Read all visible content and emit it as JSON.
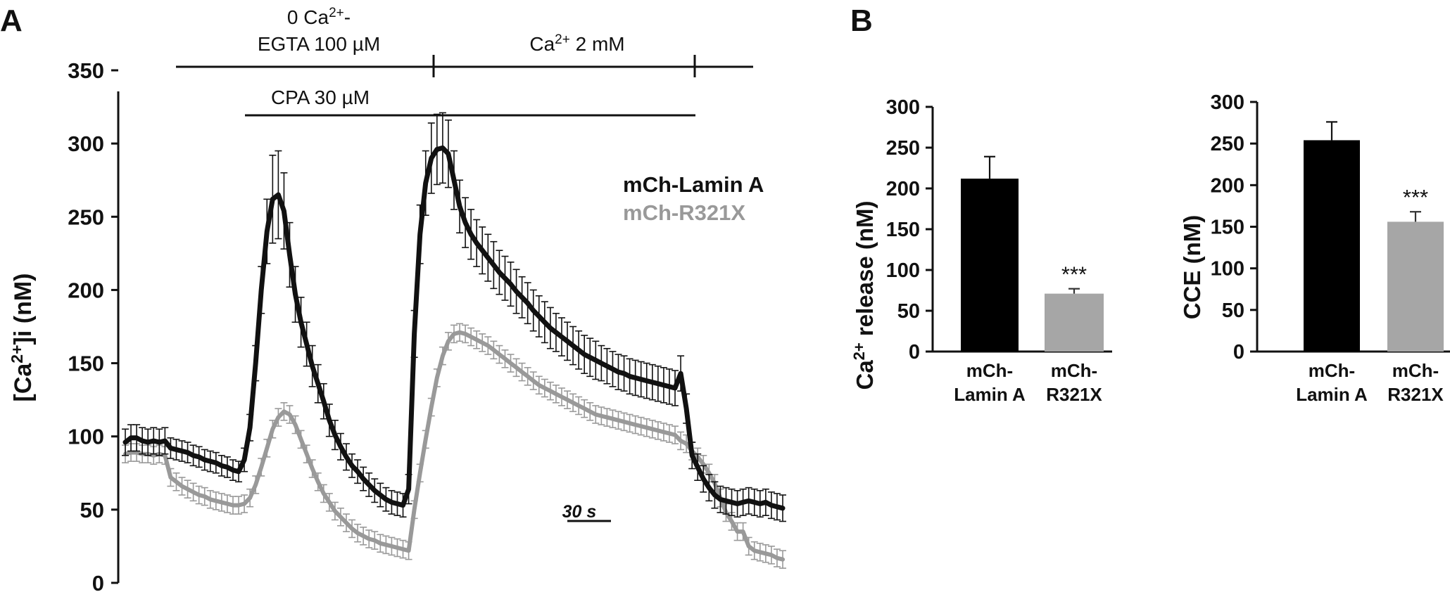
{
  "panel_labels": {
    "a": "A",
    "b": "B"
  },
  "protocol": {
    "phase1_line1": "0 Ca",
    "phase1_sup": "2+",
    "phase1_suffix": "-",
    "phase1_line2": "EGTA 100 µM",
    "phase2_prefix": "Ca",
    "phase2_sup": "2+",
    "phase2_suffix": " 2 mM",
    "drug": "CPA 30 µM"
  },
  "colors": {
    "lamin_a": "#111111",
    "r321x": "#999999",
    "axis": "#111111"
  },
  "chart_data": [
    {
      "type": "line",
      "panel": "A",
      "ylabel_prefix": "[Ca",
      "ylabel_sup": "2+",
      "ylabel_suffix": "]i (nM)",
      "yticks": [
        "0",
        "50",
        "100",
        "150",
        "200",
        "250",
        "300",
        "350"
      ],
      "ylim": [
        0,
        350
      ],
      "scale_bar": "30 s",
      "error_bars": true,
      "series": [
        {
          "name": "mCh-Lamin A",
          "color": "#111111",
          "x": [
            0,
            8,
            16,
            24,
            32,
            40,
            48,
            56,
            64,
            72,
            80,
            88,
            96,
            104,
            112,
            120,
            128,
            136,
            144,
            152,
            160,
            168,
            176,
            184,
            192,
            200,
            208,
            216,
            224,
            232,
            240,
            248,
            256,
            264,
            272,
            280,
            288,
            296,
            304,
            312,
            320,
            328,
            336,
            344,
            352,
            360,
            368,
            376,
            384,
            392,
            400,
            408,
            416,
            424,
            432,
            440,
            448,
            456,
            464,
            472,
            480,
            488,
            496,
            504,
            512,
            520,
            528,
            536,
            544,
            552,
            560,
            568,
            576,
            584,
            592,
            600,
            608,
            616,
            624,
            632,
            640,
            648,
            656,
            664,
            672,
            680,
            688,
            696,
            704,
            712,
            720,
            728,
            736,
            744,
            752,
            760,
            768,
            776,
            784,
            792,
            800,
            808,
            816,
            824,
            832,
            840,
            848,
            856,
            864,
            872,
            880,
            888,
            896,
            904,
            912,
            920,
            928
          ],
          "values": [
            96,
            99,
            99,
            97,
            96,
            97,
            96,
            97,
            92,
            91,
            90,
            89,
            87,
            86,
            84,
            83,
            82,
            80,
            79,
            77,
            76,
            84,
            106,
            150,
            200,
            240,
            262,
            265,
            254,
            224,
            197,
            178,
            163,
            148,
            136,
            124,
            111,
            101,
            93,
            86,
            80,
            76,
            71,
            67,
            63,
            60,
            57,
            55,
            54,
            53,
            64,
            170,
            238,
            273,
            290,
            296,
            297,
            293,
            275,
            257,
            246,
            238,
            232,
            227,
            222,
            217,
            212,
            208,
            204,
            199,
            195,
            191,
            186,
            182,
            178,
            174,
            171,
            168,
            165,
            162,
            159,
            156,
            154,
            152,
            150,
            148,
            146,
            144,
            143,
            141,
            140,
            139,
            138,
            137,
            136,
            135,
            134,
            133,
            143,
            119,
            87,
            79,
            71,
            65,
            60,
            57,
            56,
            55,
            54,
            55,
            56,
            55,
            54,
            55,
            53,
            52,
            51
          ],
          "errors": [
            9,
            9,
            9,
            9,
            9,
            9,
            9,
            9,
            7,
            7,
            7,
            7,
            7,
            7,
            7,
            7,
            7,
            7,
            7,
            7,
            7,
            8,
            9,
            12,
            16,
            22,
            30,
            30,
            26,
            22,
            19,
            17,
            15,
            14,
            13,
            12,
            11,
            10,
            9,
            9,
            8,
            8,
            8,
            8,
            8,
            8,
            8,
            8,
            8,
            8,
            10,
            16,
            20,
            22,
            24,
            24,
            24,
            23,
            20,
            18,
            17,
            17,
            16,
            16,
            16,
            16,
            15,
            15,
            15,
            15,
            14,
            14,
            14,
            14,
            14,
            14,
            13,
            13,
            13,
            13,
            13,
            13,
            13,
            13,
            12,
            12,
            12,
            12,
            12,
            12,
            12,
            12,
            12,
            12,
            12,
            12,
            12,
            12,
            12,
            10,
            9,
            9,
            9,
            9,
            9,
            9,
            9,
            9,
            9,
            9,
            9,
            9,
            9,
            9,
            9,
            9,
            9
          ]
        },
        {
          "name": "mCh-R321X",
          "color": "#999999",
          "x": [
            0,
            8,
            16,
            24,
            32,
            40,
            48,
            56,
            64,
            72,
            80,
            88,
            96,
            104,
            112,
            120,
            128,
            136,
            144,
            152,
            160,
            168,
            176,
            184,
            192,
            200,
            208,
            216,
            224,
            232,
            240,
            248,
            256,
            264,
            272,
            280,
            288,
            296,
            304,
            312,
            320,
            328,
            336,
            344,
            352,
            360,
            368,
            376,
            384,
            392,
            400,
            408,
            416,
            424,
            432,
            440,
            448,
            456,
            464,
            472,
            480,
            488,
            496,
            504,
            512,
            520,
            528,
            536,
            544,
            552,
            560,
            568,
            576,
            584,
            592,
            600,
            608,
            616,
            624,
            632,
            640,
            648,
            656,
            664,
            672,
            680,
            688,
            696,
            704,
            712,
            720,
            728,
            736,
            744,
            752,
            760,
            768,
            776,
            784,
            792,
            800,
            808,
            816,
            824,
            832,
            840,
            848,
            856,
            864,
            872,
            880,
            888,
            896,
            904,
            912,
            920,
            928
          ],
          "values": [
            88,
            89,
            89,
            88,
            88,
            87,
            88,
            87,
            72,
            69,
            66,
            64,
            62,
            60,
            59,
            57,
            56,
            55,
            54,
            53,
            53,
            54,
            58,
            67,
            79,
            92,
            105,
            113,
            117,
            115,
            108,
            98,
            88,
            78,
            69,
            61,
            55,
            49,
            45,
            41,
            37,
            34,
            32,
            30,
            29,
            27,
            26,
            25,
            24,
            23,
            22,
            50,
            75,
            98,
            120,
            140,
            155,
            165,
            170,
            171,
            170,
            168,
            166,
            164,
            162,
            159,
            156,
            153,
            150,
            147,
            144,
            141,
            138,
            135,
            133,
            131,
            129,
            127,
            125,
            123,
            121,
            119,
            117,
            115,
            114,
            113,
            112,
            111,
            110,
            109,
            108,
            107,
            106,
            105,
            104,
            103,
            102,
            101,
            97,
            95,
            90,
            86,
            81,
            75,
            68,
            58,
            48,
            42,
            35,
            35,
            25,
            22,
            21,
            20,
            19,
            17,
            16
          ]
        }
      ]
    },
    {
      "type": "bar",
      "panel": "B-left",
      "ylabel_prefix": "Ca",
      "ylabel_sup": "2+",
      "ylabel_suffix": " release (nM)",
      "categories": [
        [
          "mCh-",
          "Lamin A"
        ],
        [
          "mCh-",
          "R321X"
        ]
      ],
      "values": [
        212,
        71
      ],
      "errors": [
        27,
        6
      ],
      "bar_colors": [
        "#000000",
        "#a6a6a6"
      ],
      "significance": [
        "",
        "***"
      ],
      "yticks": [
        "0",
        "50",
        "100",
        "150",
        "200",
        "250",
        "300"
      ],
      "ylim": [
        0,
        300
      ]
    },
    {
      "type": "bar",
      "panel": "B-right",
      "ylabel": "CCE (nM)",
      "categories": [
        [
          "mCh-",
          "Lamin A"
        ],
        [
          "mCh-",
          "R321X"
        ]
      ],
      "values": [
        254,
        156
      ],
      "errors": [
        22,
        12
      ],
      "bar_colors": [
        "#000000",
        "#a6a6a6"
      ],
      "significance": [
        "",
        "***"
      ],
      "yticks": [
        "0",
        "50",
        "100",
        "150",
        "200",
        "250",
        "300"
      ],
      "ylim": [
        0,
        300
      ]
    }
  ]
}
